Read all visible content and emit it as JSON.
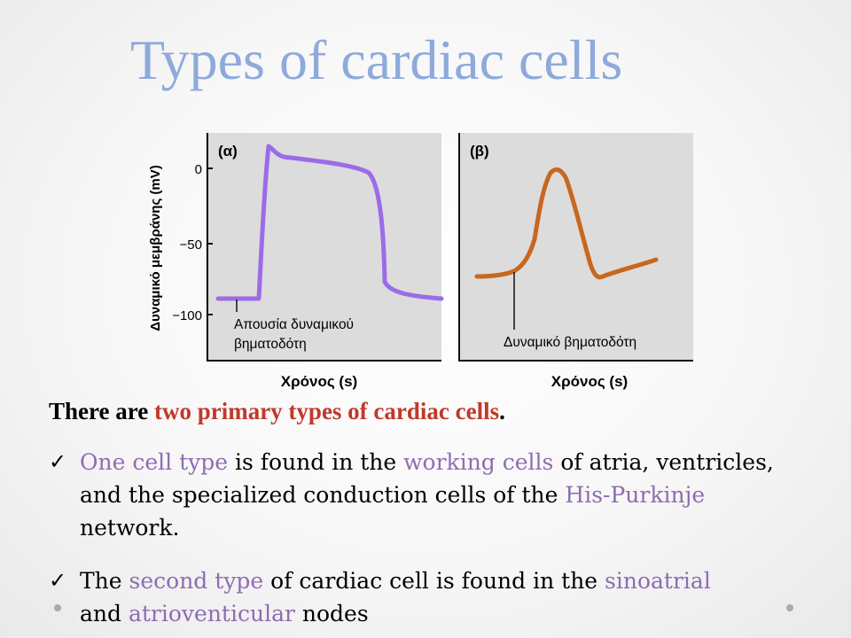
{
  "slide": {
    "title": "Types of cardiac cells"
  },
  "figure": {
    "panel_a_label": "(α)",
    "panel_b_label": "(β)",
    "y_axis_label": "Δυναμικό μεμβράνης (mV)",
    "y_ticks": [
      "0",
      "−50",
      "−100"
    ],
    "x_axis_label_a": "Χρόνος (s)",
    "x_axis_label_b": "Χρόνος (s)",
    "annotation_a_line1": "Απουσία δυναμικού",
    "annotation_a_line2": "βηματοδότη",
    "annotation_b": "Δυναμικό βηματοδότη",
    "colors": {
      "panel_bg": "#dcdcdc",
      "curve_a": "#9b6ce8",
      "curve_b": "#c8671e"
    }
  },
  "intro": {
    "part1": "There are ",
    "highlight": "two primary types of cardiac cells",
    "part2": "."
  },
  "bullets": [
    {
      "icon": "check-icon",
      "s1": "One cell type",
      "s2": " is found in the ",
      "s3": "working cells",
      "s4": " of atria, ventricles, and the specialized conduction cells of the ",
      "s5": "His-Purkinje",
      "s6": " network."
    },
    {
      "icon": "check-icon",
      "s1": "The ",
      "s2": "second type",
      "s3": " of cardiac cell is found in the ",
      "s4": "sinoatrial",
      "s5": " and ",
      "s6": "atrioventicular",
      "s7": " nodes"
    }
  ]
}
